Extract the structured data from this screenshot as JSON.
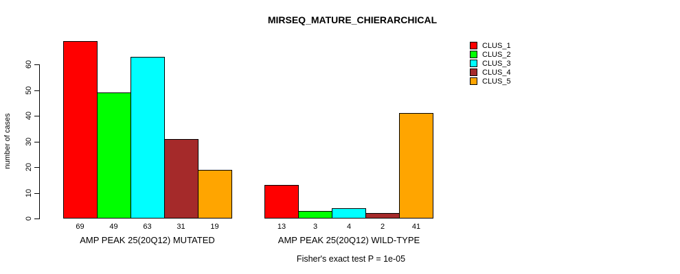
{
  "page": {
    "background": "#FFFFFF"
  },
  "chart_data": {
    "type": "bar",
    "title": "MIRSEQ_MATURE_CHIERARCHICAL",
    "ylabel": "number of cases",
    "xlabel": "",
    "ylim": [
      0,
      60
    ],
    "yticks": [
      0,
      10,
      20,
      30,
      40,
      50,
      60
    ],
    "grid": false,
    "legend_position": "top-right",
    "categories": [
      "AMP PEAK 25(20Q12) MUTATED",
      "AMP PEAK 25(20Q12) WILD-TYPE"
    ],
    "series": [
      {
        "name": "CLUS_1",
        "color": "#FF0000",
        "values": [
          69,
          13
        ]
      },
      {
        "name": "CLUS_2",
        "color": "#00FF00",
        "values": [
          49,
          3
        ]
      },
      {
        "name": "CLUS_3",
        "color": "#00FFFF",
        "values": [
          63,
          4
        ]
      },
      {
        "name": "CLUS_4",
        "color": "#A52A2A",
        "values": [
          31,
          2
        ]
      },
      {
        "name": "CLUS_5",
        "color": "#FFA500",
        "values": [
          19,
          41
        ]
      }
    ],
    "bar_value_labels": [
      [
        69,
        49,
        63,
        31,
        19
      ],
      [
        13,
        3,
        4,
        2,
        41
      ]
    ],
    "bar_border_color": "#000000",
    "axis_color": "#000000",
    "annotation": "Fisher's exact test P = 1e-05"
  }
}
